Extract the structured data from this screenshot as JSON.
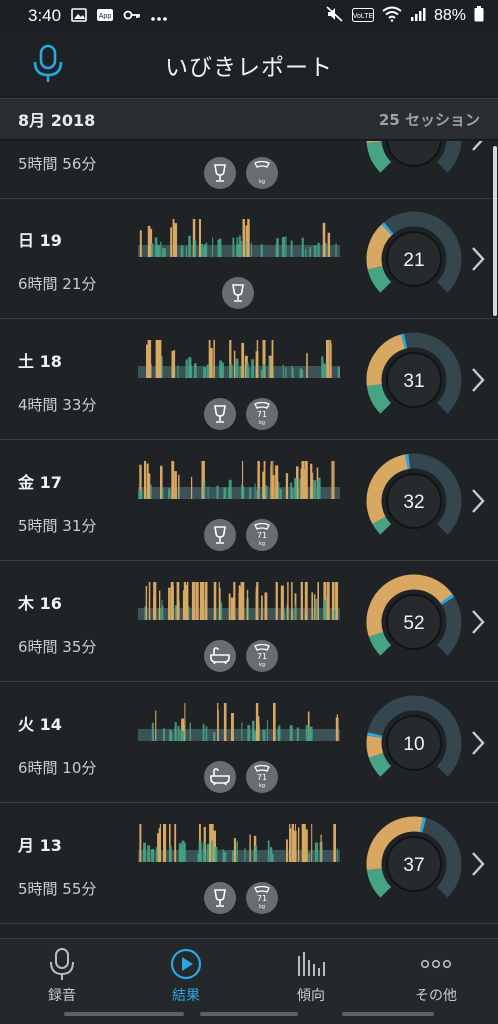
{
  "status_bar": {
    "time": "3:40",
    "left_icons": [
      "image-icon",
      "app-icon",
      "key-icon",
      "more-dots-icon"
    ],
    "right_icons": [
      "mute-icon",
      "volte-icon",
      "wifi-icon",
      "signal-icon",
      "battery-icon"
    ],
    "volte_label": "VoLTE",
    "battery": "88%"
  },
  "header": {
    "title": "いびきレポート",
    "mic_icon": "microphone-icon"
  },
  "month_bar": {
    "month": "8月 2018",
    "sessions": "25 セッション"
  },
  "colors": {
    "accent": "#2aa7e0",
    "quiet": "#3b5258",
    "light": "#46a383",
    "loud": "#d8a862",
    "epic": "#e0b773",
    "gauge_track": "#34474f",
    "gauge_center": "#262a2d"
  },
  "sessions": [
    {
      "day": "",
      "duration": "5時間 56分",
      "score": "",
      "tags": [
        "wine-icon",
        "weight-icon"
      ],
      "quiet": 0.55,
      "light": 0.15,
      "loud": 0.3,
      "weight": ""
    },
    {
      "day": "日 19",
      "duration": "6時間 21分",
      "score": "21",
      "tags": [
        "wine-icon"
      ],
      "quiet": 0.66,
      "light": 0.12,
      "loud": 0.22,
      "weight": ""
    },
    {
      "day": "土 18",
      "duration": "4時間 33分",
      "score": "31",
      "tags": [
        "wine-icon",
        "weight-icon"
      ],
      "quiet": 0.56,
      "light": 0.14,
      "loud": 0.3,
      "weight": "71"
    },
    {
      "day": "金 17",
      "duration": "5時間 31分",
      "score": "32",
      "tags": [
        "wine-icon",
        "weight-icon"
      ],
      "quiet": 0.54,
      "light": 0.06,
      "loud": 0.4,
      "weight": "71"
    },
    {
      "day": "木 16",
      "duration": "6時間 35分",
      "score": "52",
      "tags": [
        "bathtub-icon",
        "weight-icon"
      ],
      "quiet": 0.3,
      "light": 0.1,
      "loud": 0.6,
      "weight": "71"
    },
    {
      "day": "火 14",
      "duration": "6時間 10分",
      "score": "10",
      "tags": [
        "bathtub-icon",
        "weight-icon"
      ],
      "quiet": 0.8,
      "light": 0.1,
      "loud": 0.1,
      "weight": "71"
    },
    {
      "day": "月 13",
      "duration": "5時間 55分",
      "score": "37",
      "tags": [
        "wine-icon",
        "weight-icon"
      ],
      "quiet": 0.46,
      "light": 0.14,
      "loud": 0.4,
      "weight": "71"
    }
  ],
  "bottom_nav": [
    {
      "label": "録音",
      "icon": "microphone-icon",
      "active": false
    },
    {
      "label": "結果",
      "icon": "play-circle-icon",
      "active": true
    },
    {
      "label": "傾向",
      "icon": "bar-chart-icon",
      "active": false
    },
    {
      "label": "その他",
      "icon": "more-dots-icon",
      "active": false
    }
  ]
}
